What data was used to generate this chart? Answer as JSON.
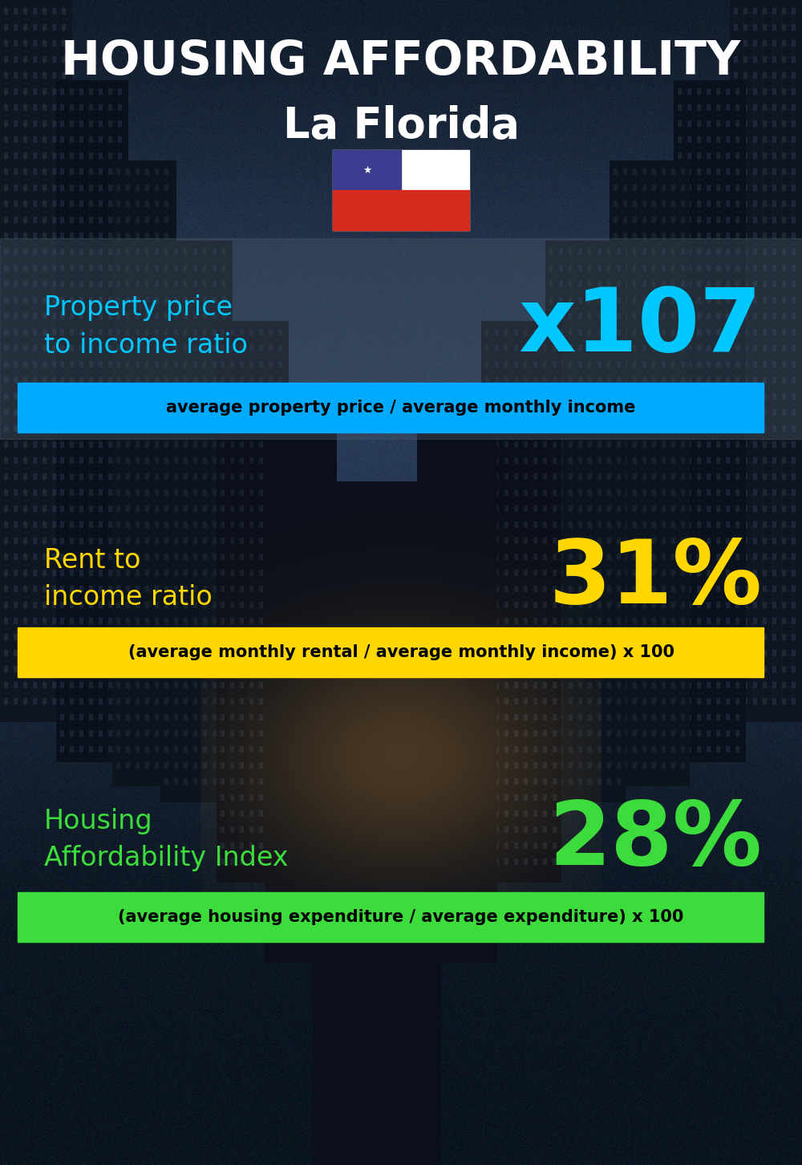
{
  "title_line1": "HOUSING AFFORDABILITY",
  "title_line2": "La Florida",
  "bg_color": "#0a1520",
  "section1_label": "Property price\nto income ratio",
  "section1_value": "x107",
  "section1_label_color": "#00c8ff",
  "section1_value_color": "#00c8ff",
  "section1_bar_text": "average property price / average monthly income",
  "section1_bar_color": "#00aaff",
  "section2_label": "Rent to\nincome ratio",
  "section2_value": "31%",
  "section2_label_color": "#ffd700",
  "section2_value_color": "#ffd700",
  "section2_bar_text": "(average monthly rental / average monthly income) x 100",
  "section2_bar_color": "#ffd700",
  "section3_label": "Housing\nAffordability Index",
  "section3_value": "28%",
  "section3_label_color": "#3ddc3d",
  "section3_value_color": "#3ddc3d",
  "section3_bar_text": "(average housing expenditure / average expenditure) x 100",
  "section3_bar_color": "#3ddc3d",
  "flag_blue": "#3b3b8f",
  "flag_red": "#d52b1e",
  "title1_fontsize": 42,
  "title2_fontsize": 38,
  "label_fontsize": 24,
  "value_fontsize": 80,
  "bar_fontsize": 15
}
